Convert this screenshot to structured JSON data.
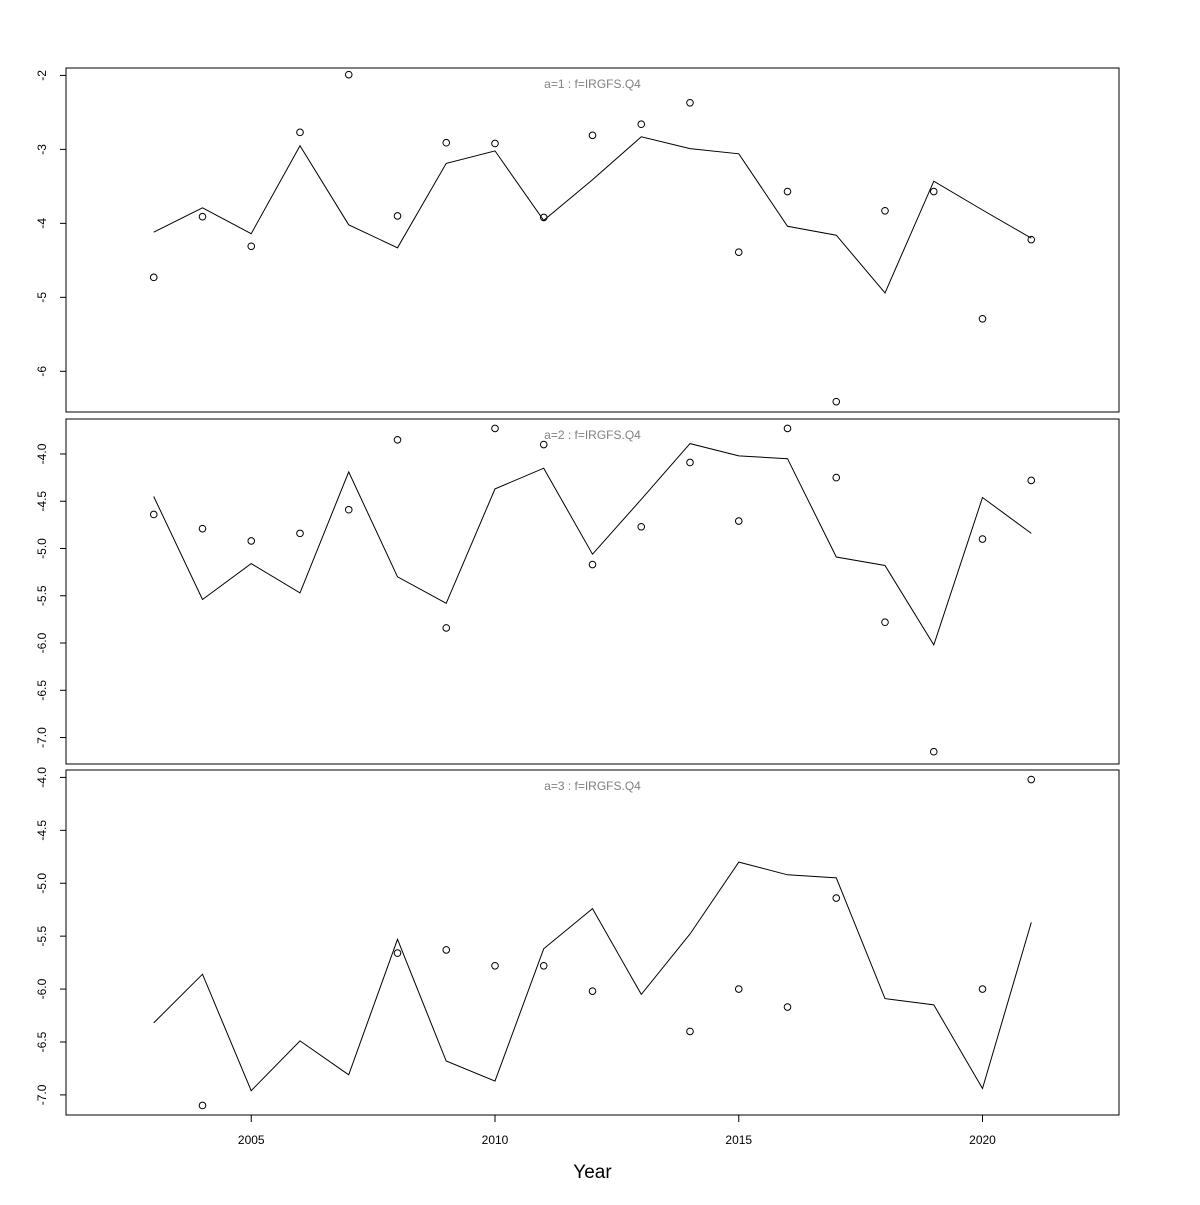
{
  "chart_data": {
    "type": "line",
    "xlabel": "Year",
    "x_axis": {
      "ticks": [
        2005,
        2010,
        2015,
        2020
      ],
      "xlim": [
        2001.2,
        2022.8
      ]
    },
    "legend": "none",
    "grid": false,
    "panels": [
      {
        "title": "a=1  :  f=IRGFS.Q4",
        "ylim": [
          -6.55,
          -1.9
        ],
        "yticks": [
          -2,
          -3,
          -4,
          -5,
          -6
        ],
        "years": [
          2003,
          2004,
          2005,
          2006,
          2007,
          2008,
          2009,
          2010,
          2011,
          2012,
          2013,
          2014,
          2015,
          2016,
          2017,
          2018,
          2019,
          2020,
          2021
        ],
        "fitted": [
          -4.12,
          -3.79,
          -4.14,
          -2.95,
          -4.02,
          -4.33,
          -3.19,
          -3.02,
          -3.96,
          -3.41,
          -2.83,
          -2.99,
          -3.06,
          -4.04,
          -4.16,
          -4.94,
          -3.43,
          -3.82,
          -4.2
        ],
        "observed": [
          [
            2003,
            -4.73
          ],
          [
            2004,
            -3.91
          ],
          [
            2005,
            -4.31
          ],
          [
            2006,
            -2.77
          ],
          [
            2007,
            -1.99
          ],
          [
            2008,
            -3.9
          ],
          [
            2009,
            -2.91
          ],
          [
            2010,
            -2.92
          ],
          [
            2011,
            -3.92
          ],
          [
            2012,
            -2.81
          ],
          [
            2013,
            -2.66
          ],
          [
            2014,
            -2.37
          ],
          [
            2015,
            -4.39
          ],
          [
            2016,
            -3.57
          ],
          [
            2017,
            -6.41
          ],
          [
            2018,
            -3.83
          ],
          [
            2019,
            -3.57
          ],
          [
            2020,
            -5.29
          ],
          [
            2021,
            -4.22
          ]
        ]
      },
      {
        "title": "a=2  :  f=IRGFS.Q4",
        "ylim": [
          -7.28,
          -3.63
        ],
        "yticks": [
          -4.0,
          -4.5,
          -5.0,
          -5.5,
          -6.0,
          -6.5,
          -7.0
        ],
        "years": [
          2003,
          2004,
          2005,
          2006,
          2007,
          2008,
          2009,
          2010,
          2011,
          2012,
          2013,
          2014,
          2015,
          2016,
          2017,
          2018,
          2019,
          2020,
          2021
        ],
        "fitted": [
          -4.45,
          -5.54,
          -5.16,
          -5.47,
          -4.19,
          -5.3,
          -5.58,
          -4.37,
          -4.15,
          -5.06,
          -4.48,
          -3.89,
          -4.02,
          -4.05,
          -5.09,
          -5.18,
          -6.02,
          -4.46,
          -4.84
        ],
        "observed": [
          [
            2003,
            -4.64
          ],
          [
            2004,
            -4.79
          ],
          [
            2005,
            -4.92
          ],
          [
            2006,
            -4.84
          ],
          [
            2007,
            -4.59
          ],
          [
            2008,
            -3.85
          ],
          [
            2009,
            -5.84
          ],
          [
            2010,
            -3.73
          ],
          [
            2011,
            -3.9
          ],
          [
            2012,
            -5.17
          ],
          [
            2013,
            -4.77
          ],
          [
            2014,
            -4.09
          ],
          [
            2015,
            -4.71
          ],
          [
            2016,
            -3.73
          ],
          [
            2017,
            -4.25
          ],
          [
            2018,
            -5.78
          ],
          [
            2019,
            -7.15
          ],
          [
            2020,
            -4.9
          ],
          [
            2021,
            -4.28
          ]
        ]
      },
      {
        "title": "a=3  :  f=IRGFS.Q4",
        "ylim": [
          -7.19,
          -3.93
        ],
        "yticks": [
          -4.0,
          -4.5,
          -5.0,
          -5.5,
          -6.0,
          -6.5,
          -7.0
        ],
        "years": [
          2003,
          2004,
          2005,
          2006,
          2007,
          2008,
          2009,
          2010,
          2011,
          2012,
          2013,
          2014,
          2015,
          2016,
          2017,
          2018,
          2019,
          2020,
          2021
        ],
        "fitted": [
          -6.32,
          -5.86,
          -6.96,
          -6.49,
          -6.81,
          -5.53,
          -6.68,
          -6.87,
          -5.62,
          -5.24,
          -6.05,
          -5.48,
          -4.8,
          -4.92,
          -4.95,
          -6.09,
          -6.15,
          -6.94,
          -5.37
        ],
        "observed": [
          [
            2004,
            -7.1
          ],
          [
            2008,
            -5.66
          ],
          [
            2009,
            -5.63
          ],
          [
            2010,
            -5.78
          ],
          [
            2011,
            -5.78
          ],
          [
            2012,
            -6.02
          ],
          [
            2014,
            -6.4
          ],
          [
            2015,
            -6.0
          ],
          [
            2016,
            -6.17
          ],
          [
            2017,
            -5.14
          ],
          [
            2020,
            -6.0
          ],
          [
            2021,
            -4.02
          ]
        ]
      }
    ]
  }
}
